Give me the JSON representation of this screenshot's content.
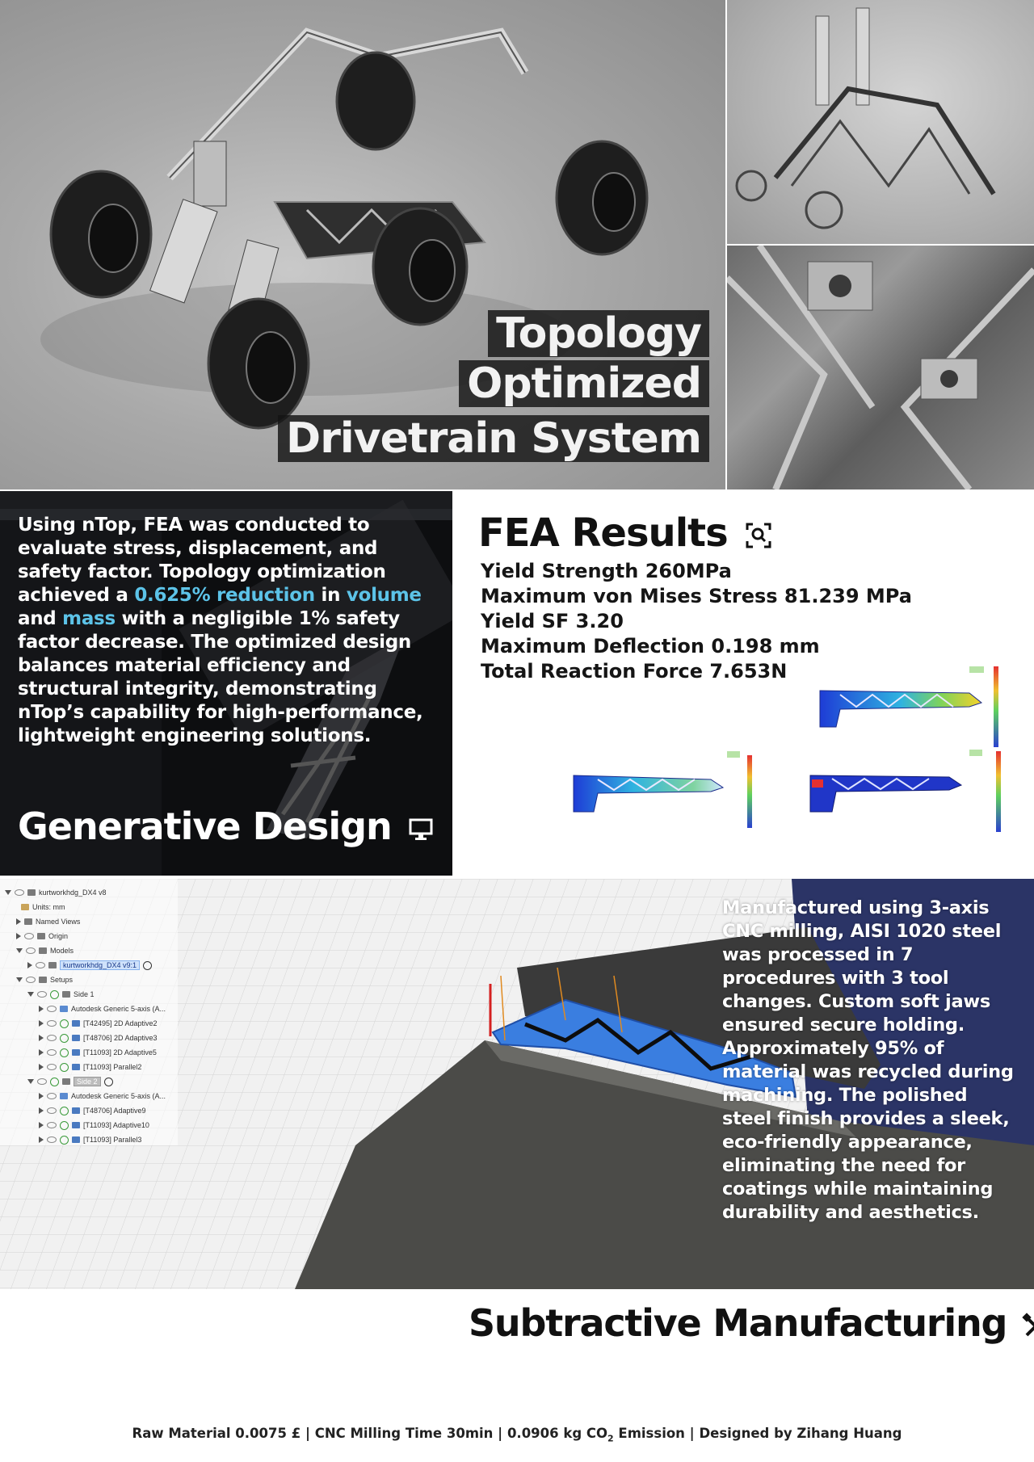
{
  "hero": {
    "title_lines": [
      "Topology",
      "Optimized",
      "Drivetrain System"
    ]
  },
  "generative": {
    "text_part1": "Using nTop, FEA was conducted to evaluate stress, displacement, and safety factor. Topology optimization achieved a ",
    "highlight_reduction": "0.625% reduction",
    "text_in": " in ",
    "highlight_volume": "volume",
    "text_and": " and ",
    "highlight_mass": "mass",
    "text_part2": " with a negligible 1% safety factor decrease. The optimized design balances material efficiency and structural integrity, demonstrating nTop’s capability for high-performance, lightweight engineering solutions.",
    "heading": "Generative Design",
    "heading_icon": "monitor-icon"
  },
  "fea": {
    "heading": "FEA Results",
    "heading_icon": "magnifier-icon",
    "results": [
      "Yield Strength 260MPa",
      "Maximum von Mises Stress 81.239 MPa",
      "Yield SF 3.20",
      "Maximum Deflection 0.198 mm",
      "Total Reaction Force 7.653N"
    ]
  },
  "manufacturing": {
    "text": "Manufactured using 3-axis CNC milling, AISI 1020 steel was processed in 7 procedures with 3 tool changes. Custom soft jaws ensured secure holding. Approximately 95% of material was recycled during machining. The polished steel finish provides a sleek, eco-friendly appearance, eliminating the need for coatings while maintaining durability and aesthetics.",
    "tree": [
      {
        "label": "kurtworkhdg_DX4 v8"
      },
      {
        "label": "Units: mm"
      },
      {
        "label": "Named Views"
      },
      {
        "label": "Origin"
      },
      {
        "label": "Models"
      },
      {
        "label": "kurtworkhdg_DX4 v9:1"
      },
      {
        "label": "Setups"
      },
      {
        "label": "Side 1"
      },
      {
        "label": "Autodesk Generic 5-axis (A..."
      },
      {
        "label": "[T42495] 2D Adaptive2"
      },
      {
        "label": "[T48706] 2D Adaptive3"
      },
      {
        "label": "[T11093] 2D Adaptive5"
      },
      {
        "label": "[T11093] Parallel2"
      },
      {
        "label": "Side 2"
      },
      {
        "label": "Autodesk Generic 5-axis (A..."
      },
      {
        "label": "[T48706] Adaptive9"
      },
      {
        "label": "[T11093] Adaptive10"
      },
      {
        "label": "[T11093] Parallel3"
      }
    ],
    "heading": "Subtractive Manufacturing",
    "heading_icon": "tools-icon"
  },
  "footer": {
    "text_a": "Raw Material 0.0075 £ | CNC Milling Time 30min | 0.0906 kg CO",
    "sub": "2",
    "text_b": " Emission | Designed by Zihang Huang"
  }
}
